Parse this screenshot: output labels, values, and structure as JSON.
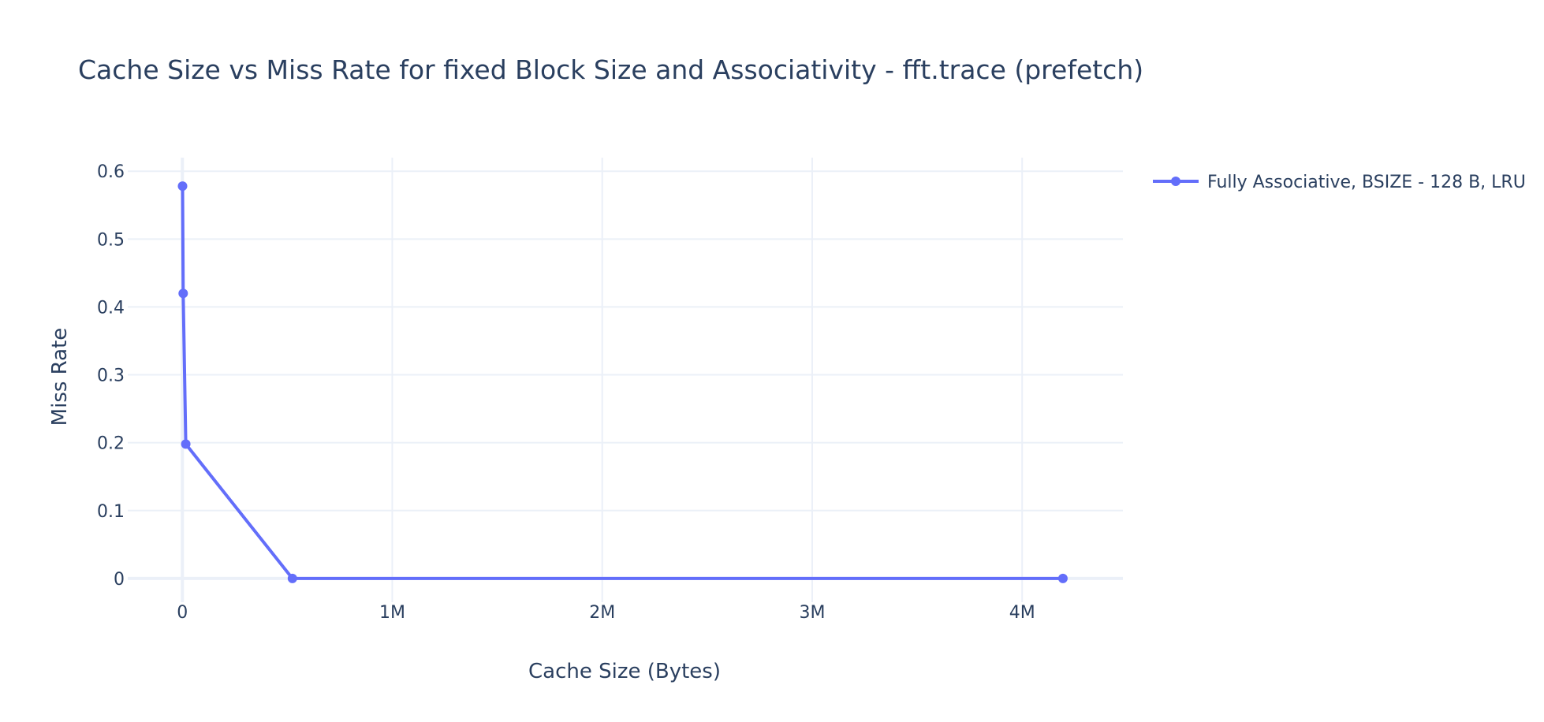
{
  "chart_data": {
    "type": "line",
    "title": "Cache Size vs Miss Rate for fixed Block Size and Associativity - fft.trace (prefetch)",
    "xlabel": "Cache Size (Bytes)",
    "ylabel": "Miss Rate",
    "xlim": [
      -260000,
      4480000
    ],
    "ylim": [
      -0.035,
      0.62
    ],
    "x_ticks": [
      {
        "value": 0,
        "label": "0"
      },
      {
        "value": 1000000,
        "label": "1M"
      },
      {
        "value": 2000000,
        "label": "2M"
      },
      {
        "value": 3000000,
        "label": "3M"
      },
      {
        "value": 4000000,
        "label": "4M"
      }
    ],
    "y_ticks": [
      {
        "value": 0,
        "label": "0"
      },
      {
        "value": 0.1,
        "label": "0.1"
      },
      {
        "value": 0.2,
        "label": "0.2"
      },
      {
        "value": 0.3,
        "label": "0.3"
      },
      {
        "value": 0.4,
        "label": "0.4"
      },
      {
        "value": 0.5,
        "label": "0.5"
      },
      {
        "value": 0.6,
        "label": "0.6"
      }
    ],
    "grid": true,
    "legend_position": "top-right",
    "series": [
      {
        "name": "Fully Associative, BSIZE - 128 B, LRU",
        "color": "#636efa",
        "x": [
          1024,
          4096,
          16384,
          524288,
          4194304
        ],
        "y": [
          0.578,
          0.42,
          0.198,
          0.0,
          0.0
        ]
      }
    ]
  }
}
